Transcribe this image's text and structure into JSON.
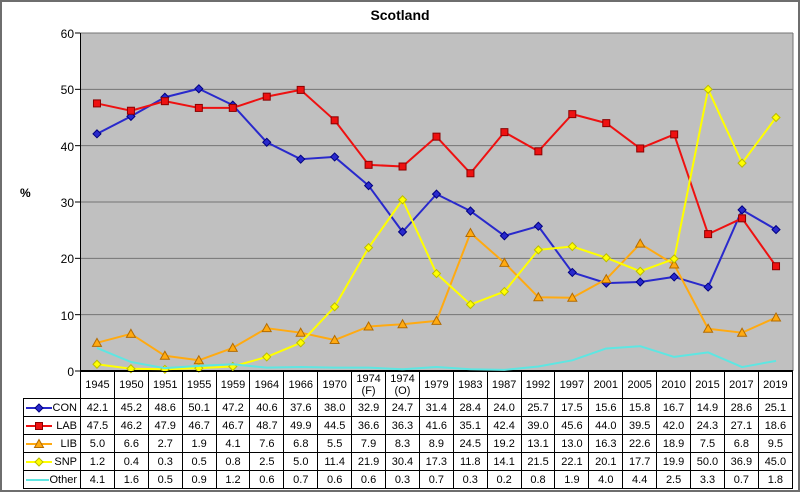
{
  "chart_data": {
    "type": "line",
    "title": "Scotland",
    "ylabel": "%",
    "ylim": [
      0,
      60
    ],
    "yticks": [
      0,
      10,
      20,
      30,
      40,
      50,
      60
    ],
    "grid": true,
    "plot_bg": "#c0c0c0",
    "gridline_color": "#757575",
    "axis_color": "#000000",
    "legend_position": "data-table-left",
    "categories": [
      "1945",
      "1950",
      "1951",
      "1955",
      "1959",
      "1964",
      "1966",
      "1970",
      "1974 (F)",
      "1974 (O)",
      "1979",
      "1983",
      "1987",
      "1992",
      "1997",
      "2001",
      "2005",
      "2010",
      "2015",
      "2017",
      "2019"
    ],
    "series": [
      {
        "name": "CON",
        "color": "#2929cc",
        "edge": "#000080",
        "marker": "diamond",
        "values": [
          42.1,
          45.2,
          48.6,
          50.1,
          47.2,
          40.6,
          37.6,
          38.0,
          32.9,
          24.7,
          31.4,
          28.4,
          24.0,
          25.7,
          17.5,
          15.6,
          15.8,
          16.7,
          14.9,
          28.6,
          25.1
        ]
      },
      {
        "name": "LAB",
        "color": "#ee1111",
        "edge": "#8b0000",
        "marker": "square",
        "values": [
          47.5,
          46.2,
          47.9,
          46.7,
          46.7,
          48.7,
          49.9,
          44.5,
          36.6,
          36.3,
          41.6,
          35.1,
          42.4,
          39.0,
          45.6,
          44.0,
          39.5,
          42.0,
          24.3,
          27.1,
          18.6
        ]
      },
      {
        "name": "LIB",
        "color": "#ffaa11",
        "edge": "#b36b00",
        "marker": "triangle",
        "values": [
          5.0,
          6.6,
          2.7,
          1.9,
          4.1,
          7.6,
          6.8,
          5.5,
          7.9,
          8.3,
          8.9,
          24.5,
          19.2,
          13.1,
          13.0,
          16.3,
          22.6,
          18.9,
          7.5,
          6.8,
          9.5
        ]
      },
      {
        "name": "SNP",
        "color": "#ffff00",
        "edge": "#bcbc00",
        "marker": "diamond",
        "values": [
          1.2,
          0.4,
          0.3,
          0.5,
          0.8,
          2.5,
          5.0,
          11.4,
          21.9,
          30.4,
          17.3,
          11.8,
          14.1,
          21.5,
          22.1,
          20.1,
          17.7,
          19.9,
          50.0,
          36.9,
          45.0
        ]
      },
      {
        "name": "Other",
        "color": "#5ee6e2",
        "edge": "#5ee6e2",
        "marker": "none",
        "values": [
          4.1,
          1.6,
          0.5,
          0.9,
          1.2,
          0.6,
          0.7,
          0.6,
          0.6,
          0.3,
          0.7,
          0.3,
          0.2,
          0.8,
          1.9,
          4.0,
          4.4,
          2.5,
          3.3,
          0.7,
          1.8
        ]
      }
    ]
  }
}
